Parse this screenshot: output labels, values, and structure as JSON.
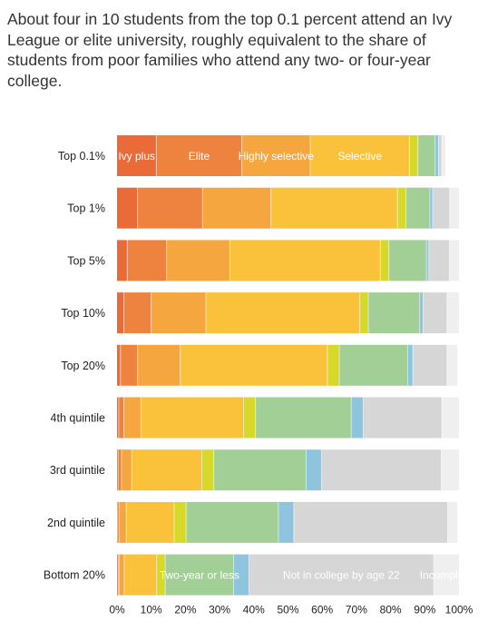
{
  "chart_data": {
    "type": "bar",
    "orientation": "horizontal",
    "stacked": true,
    "title": "About four in 10 students from the top 0.1 percent attend an Ivy League or elite university, roughly equivalent to the share of students from poor families who attend any two- or four-year college.",
    "xlabel": "",
    "ylabel": "",
    "xlim": [
      0,
      100
    ],
    "x_ticks": [
      "0%",
      "10%",
      "20%",
      "30%",
      "40%",
      "50%",
      "60%",
      "70%",
      "80%",
      "90%",
      "100%"
    ],
    "grid": false,
    "categories": [
      "Top 0.1%",
      "Top 1%",
      "Top 5%",
      "Top 10%",
      "Top 20%",
      "4th quintile",
      "3rd quintile",
      "2nd quintile",
      "Bottom 20%"
    ],
    "series": [
      {
        "name": "Ivy plus",
        "color": "#ea6b38",
        "values": [
          11.5,
          6,
          3,
          2,
          1,
          0.5,
          0.3,
          0.2,
          0.3
        ]
      },
      {
        "name": "Elite",
        "color": "#ee823f",
        "values": [
          25,
          19,
          11.5,
          8,
          5,
          1.5,
          1,
          0.5,
          0.3
        ]
      },
      {
        "name": "Highly selective",
        "color": "#f5a63f",
        "values": [
          20,
          20,
          18.5,
          16,
          12.5,
          5,
          3,
          2,
          1.5
        ]
      },
      {
        "name": "Selective",
        "color": "#fac23b",
        "values": [
          29,
          37,
          44,
          45,
          43,
          30,
          20.5,
          14,
          9.5
        ]
      },
      {
        "name": "",
        "color": "#d6d82a",
        "values": [
          2.5,
          2.5,
          2.5,
          2.5,
          3.5,
          3.5,
          3.5,
          3.5,
          2.5
        ]
      },
      {
        "name": "Two-year or less",
        "color": "#a2cf95",
        "values": [
          5,
          7,
          11,
          15,
          20,
          28,
          27,
          27,
          20
        ]
      },
      {
        "name": "",
        "color": "#8ec4dd",
        "values": [
          1,
          0.8,
          0.7,
          1,
          1.5,
          3.5,
          4.5,
          4.5,
          4.5
        ]
      },
      {
        "name": "Not in college by age 22",
        "color": "#d6d6d6",
        "values": [
          1,
          5,
          6,
          7,
          10,
          23,
          35,
          45,
          54
        ]
      },
      {
        "name": "Incomplete",
        "color": "#efefef",
        "values": [
          1,
          2.7,
          2.8,
          3.5,
          3,
          5,
          5.2,
          2.8,
          7.4
        ]
      }
    ],
    "segment_label_rows": {
      "Top 0.1%": [
        "Ivy plus",
        "Elite",
        "Highly selective",
        "Selective"
      ],
      "Bottom 20%": [
        "Two-year or less",
        "Not in college by age 22",
        "Incomplete"
      ]
    }
  }
}
